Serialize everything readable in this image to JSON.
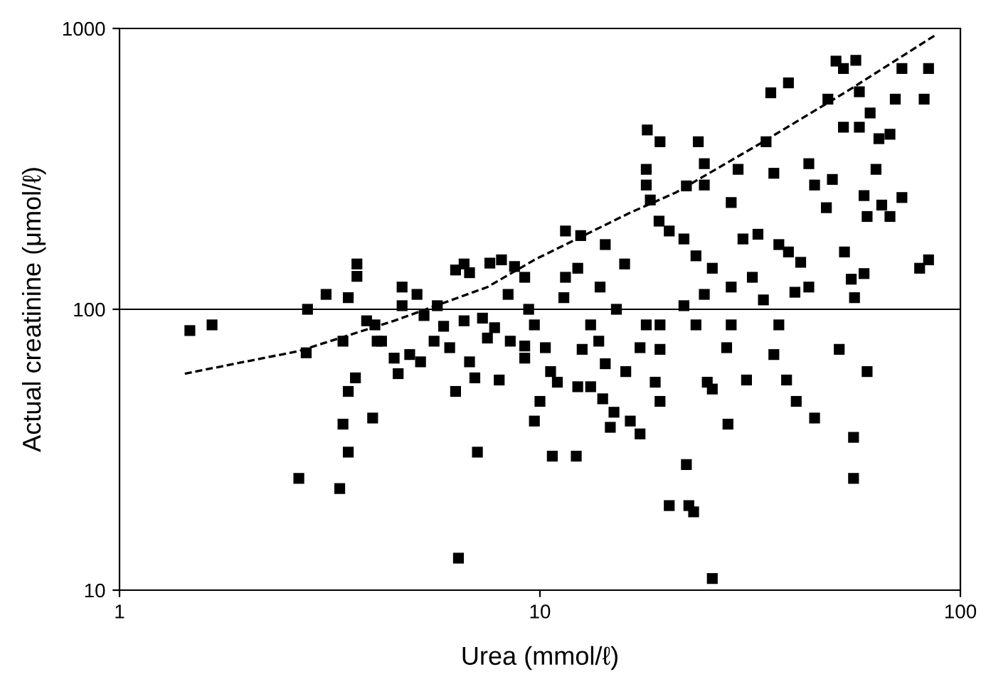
{
  "chart_data": {
    "type": "scatter",
    "xlabel": "Urea (mmol/ℓ)",
    "ylabel": "Actual creatinine (μmol/ℓ)",
    "log": "xy",
    "xlim": [
      1,
      100
    ],
    "xticks": [
      1,
      10,
      100
    ],
    "ylim": [
      10,
      1000
    ],
    "yticks": [
      10,
      100,
      1000
    ],
    "grid": false,
    "ref_lines": [
      {
        "axis": "y",
        "value": 100,
        "color": "#000000",
        "line_style": "solid"
      }
    ],
    "series": [
      {
        "color": "#000000",
        "marker": "square",
        "x": [
          1.47,
          1.66,
          2.78,
          2.8,
          2.67,
          3.34,
          3.1,
          3.5,
          3.67,
          3.67,
          3.4,
          3.5,
          3.4,
          3.5,
          3.64,
          4.0,
          4.1,
          3.87,
          4.05,
          4.2,
          4.5,
          4.6,
          4.9,
          5.2,
          4.7,
          5.1,
          4.7,
          5.3,
          5.7,
          5.9,
          6.1,
          5.6,
          6.6,
          6.3,
          6.6,
          6.8,
          7.3,
          7.5,
          6.8,
          6.3,
          7.0,
          6.4,
          7.1,
          7.6,
          8.1,
          8.7,
          8.4,
          9.2,
          7.8,
          8.5,
          8.0,
          9.2,
          10.3,
          9.7,
          9.2,
          10.6,
          11,
          9.7,
          10,
          10.7,
          12.2,
          9.4,
          11.4,
          11.5,
          12.5,
          11.5,
          12.3,
          14.3,
          15.9,
          13.9,
          15.2,
          13.2,
          13.8,
          12.6,
          14.3,
          16,
          14.1,
          14.7,
          15,
          12.3,
          13.2,
          18.3,
          19.2,
          17.9,
          17.9,
          18,
          19.3,
          22.3,
          20.3,
          22,
          23.5,
          25.7,
          22,
          23.5,
          19.3,
          19.3,
          17.9,
          17.3,
          18.8,
          19.3,
          16.4,
          17.3,
          20.3,
          22.3,
          22.6,
          23.2,
          25.7,
          25,
          25.7,
          28,
          27.8,
          28.5,
          24.6,
          28.5,
          24.6,
          24.6,
          23.8,
          29.6,
          28.5,
          30.4,
          32,
          34,
          37,
          33,
          37,
          39,
          41.7,
          40.4,
          43.6,
          45,
          43.6,
          36,
          34.5,
          35.4,
          39,
          38.6,
          40.7,
          45,
          31,
          36,
          48,
          49.6,
          52.7,
          48.4,
          50.6,
          52.7,
          56.4,
          57.5,
          57.5,
          61,
          59,
          60,
          53,
          55,
          56,
          51.5,
          60,
          55.7,
          55.7,
          68,
          64,
          63,
          65,
          68,
          72.6,
          84,
          70,
          82,
          72.6,
          84,
          80,
          59
        ],
        "values": [
          84,
          88,
          70,
          100,
          25,
          23,
          113,
          110,
          145,
          131,
          77,
          51,
          39,
          31,
          57,
          41,
          77,
          91,
          88,
          77,
          67,
          59,
          69,
          65,
          120,
          113,
          103,
          95,
          103,
          87,
          73,
          77,
          91,
          138,
          145,
          135,
          93,
          79,
          65,
          51,
          57,
          13,
          31,
          146,
          150,
          142,
          113,
          130,
          86,
          77,
          56,
          74,
          73,
          88,
          67,
          60,
          55,
          40,
          47,
          30,
          30,
          100,
          110,
          130,
          183,
          190,
          140,
          170,
          145,
          120,
          100,
          88,
          77,
          72,
          64,
          60,
          48,
          38,
          43,
          53,
          53,
          245,
          206,
          277,
          315,
          435,
          395,
          275,
          190,
          178,
          155,
          140,
          103,
          88,
          88,
          72,
          88,
          73,
          55,
          47,
          40,
          36,
          20,
          28,
          20,
          19,
          11,
          55,
          52,
          39,
          73,
          88,
          113,
          120,
          277,
          330,
          395,
          315,
          240,
          178,
          130,
          108,
          88,
          185,
          170,
          160,
          147,
          115,
          120,
          277,
          330,
          305,
          395,
          590,
          640,
          56,
          47,
          41,
          56,
          69,
          230,
          290,
          445,
          560,
          765,
          720,
          770,
          595,
          445,
          500,
          254,
          214,
          160,
          128,
          110,
          72,
          60,
          25,
          35,
          420,
          405,
          315,
          235,
          214,
          720,
          720,
          560,
          560,
          250,
          150,
          140,
          134
        ]
      },
      {
        "type": "line",
        "color": "#000000",
        "marker": "none",
        "line_style": "dashed",
        "x": [
          1.43,
          2.67,
          4.5,
          7.5,
          9.7,
          16.3,
          21,
          33,
          54,
          87.5
        ],
        "values": [
          59,
          71,
          91,
          120,
          150,
          220,
          260,
          385,
          600,
          950
        ]
      }
    ]
  }
}
